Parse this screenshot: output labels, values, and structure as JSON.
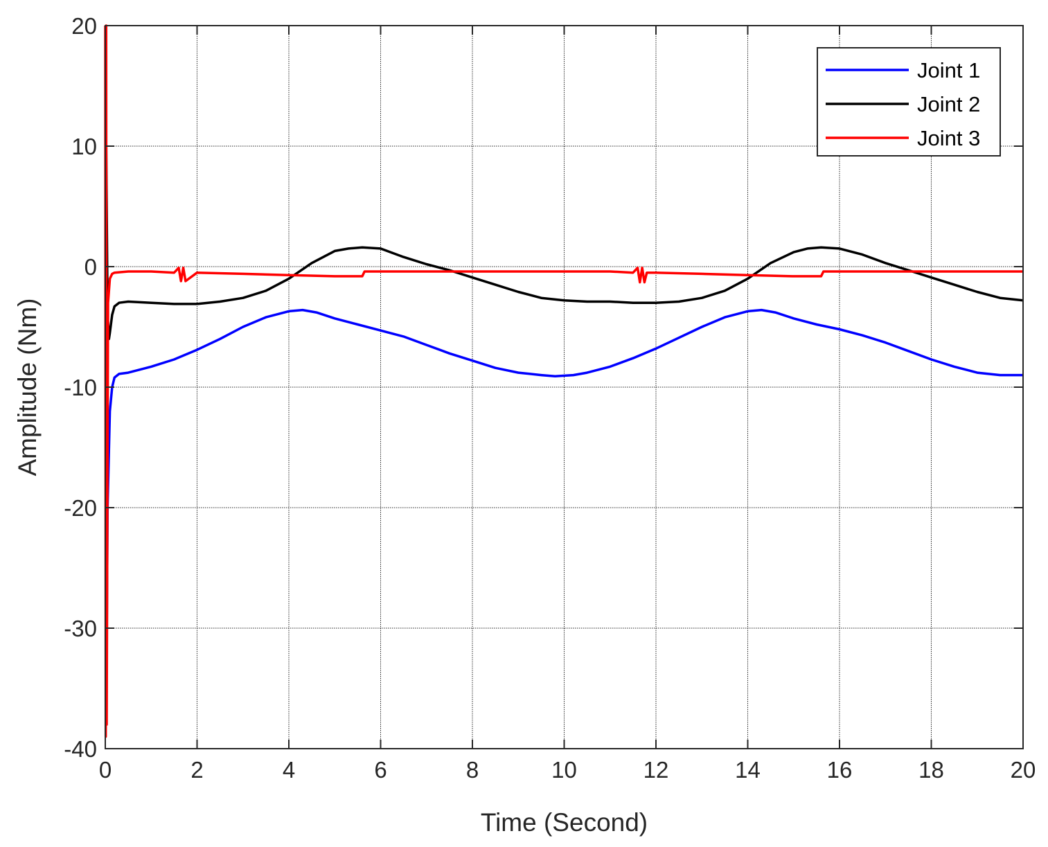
{
  "chart_data": {
    "type": "line",
    "xlabel": "Time (Second)",
    "ylabel": "Amplitude (Nm)",
    "xlim": [
      0,
      20
    ],
    "ylim": [
      -40,
      20
    ],
    "x_ticks": [
      "0",
      "2",
      "4",
      "6",
      "8",
      "10",
      "12",
      "14",
      "16",
      "18",
      "20"
    ],
    "y_ticks": [
      "-40",
      "-30",
      "-20",
      "-10",
      "0",
      "10",
      "20"
    ],
    "grid": true,
    "legend_position": "top-right",
    "series": [
      {
        "name": "Joint 1",
        "color": "#0000ff",
        "x": [
          0.02,
          0.05,
          0.1,
          0.15,
          0.2,
          0.3,
          0.5,
          1.0,
          1.5,
          2.0,
          2.5,
          3.0,
          3.5,
          4.0,
          4.3,
          4.6,
          5.0,
          5.5,
          6.0,
          6.5,
          7.0,
          7.5,
          8.0,
          8.5,
          9.0,
          9.5,
          9.8,
          10.2,
          10.5,
          11.0,
          11.5,
          12.0,
          12.5,
          13.0,
          13.5,
          14.0,
          14.3,
          14.6,
          15.0,
          15.5,
          16.0,
          16.5,
          17.0,
          17.5,
          18.0,
          18.5,
          19.0,
          19.5,
          20.0
        ],
        "y": [
          -38.0,
          -20.0,
          -12.0,
          -10.0,
          -9.2,
          -8.9,
          -8.8,
          -8.3,
          -7.7,
          -6.9,
          -6.0,
          -5.0,
          -4.2,
          -3.7,
          -3.6,
          -3.8,
          -4.3,
          -4.8,
          -5.3,
          -5.8,
          -6.5,
          -7.2,
          -7.8,
          -8.4,
          -8.8,
          -9.0,
          -9.1,
          -9.0,
          -8.8,
          -8.3,
          -7.6,
          -6.8,
          -5.9,
          -5.0,
          -4.2,
          -3.7,
          -3.6,
          -3.8,
          -4.3,
          -4.8,
          -5.2,
          -5.7,
          -6.3,
          -7.0,
          -7.7,
          -8.3,
          -8.8,
          -9.0,
          -9.0
        ]
      },
      {
        "name": "Joint 2",
        "color": "#000000",
        "x": [
          0.02,
          0.05,
          0.08,
          0.1,
          0.15,
          0.2,
          0.3,
          0.5,
          1.0,
          1.5,
          2.0,
          2.5,
          3.0,
          3.5,
          4.0,
          4.5,
          5.0,
          5.3,
          5.6,
          6.0,
          6.5,
          7.0,
          7.5,
          8.0,
          8.5,
          9.0,
          9.5,
          10.0,
          10.5,
          11.0,
          11.5,
          12.0,
          12.5,
          13.0,
          13.5,
          14.0,
          14.5,
          15.0,
          15.3,
          15.6,
          16.0,
          16.5,
          17.0,
          17.5,
          18.0,
          18.5,
          19.0,
          19.5,
          20.0
        ],
        "y": [
          10.0,
          -4.0,
          -6.0,
          -5.5,
          -4.0,
          -3.3,
          -3.0,
          -2.9,
          -3.0,
          -3.1,
          -3.1,
          -2.9,
          -2.6,
          -2.0,
          -1.0,
          0.3,
          1.3,
          1.5,
          1.6,
          1.5,
          0.8,
          0.2,
          -0.3,
          -0.9,
          -1.5,
          -2.1,
          -2.6,
          -2.8,
          -2.9,
          -2.9,
          -3.0,
          -3.0,
          -2.9,
          -2.6,
          -2.0,
          -1.0,
          0.3,
          1.2,
          1.5,
          1.6,
          1.5,
          1.0,
          0.3,
          -0.3,
          -0.9,
          -1.5,
          -2.1,
          -2.6,
          -2.8
        ]
      },
      {
        "name": "Joint 3",
        "color": "#ff0000",
        "x": [
          0.0,
          0.01,
          0.02,
          0.03,
          0.06,
          0.1,
          0.15,
          0.2,
          0.5,
          1.0,
          1.5,
          1.6,
          1.65,
          1.7,
          1.75,
          2.0,
          3.0,
          4.0,
          5.0,
          5.6,
          5.65,
          6.0,
          7.0,
          8.0,
          9.0,
          10.0,
          11.0,
          11.5,
          11.6,
          11.65,
          11.7,
          11.75,
          11.8,
          12.0,
          13.0,
          14.0,
          15.0,
          15.6,
          15.65,
          16.0,
          17.0,
          18.0,
          19.0,
          20.0
        ],
        "y": [
          20.0,
          -39.0,
          20.0,
          -38.0,
          -3.0,
          -1.0,
          -0.6,
          -0.5,
          -0.4,
          -0.4,
          -0.5,
          -0.1,
          -1.2,
          -0.1,
          -1.2,
          -0.5,
          -0.6,
          -0.7,
          -0.8,
          -0.8,
          -0.4,
          -0.4,
          -0.4,
          -0.4,
          -0.4,
          -0.4,
          -0.4,
          -0.5,
          -0.1,
          -1.3,
          -0.1,
          -1.3,
          -0.5,
          -0.5,
          -0.6,
          -0.7,
          -0.8,
          -0.8,
          -0.4,
          -0.4,
          -0.4,
          -0.4,
          -0.4,
          -0.4
        ]
      }
    ]
  }
}
